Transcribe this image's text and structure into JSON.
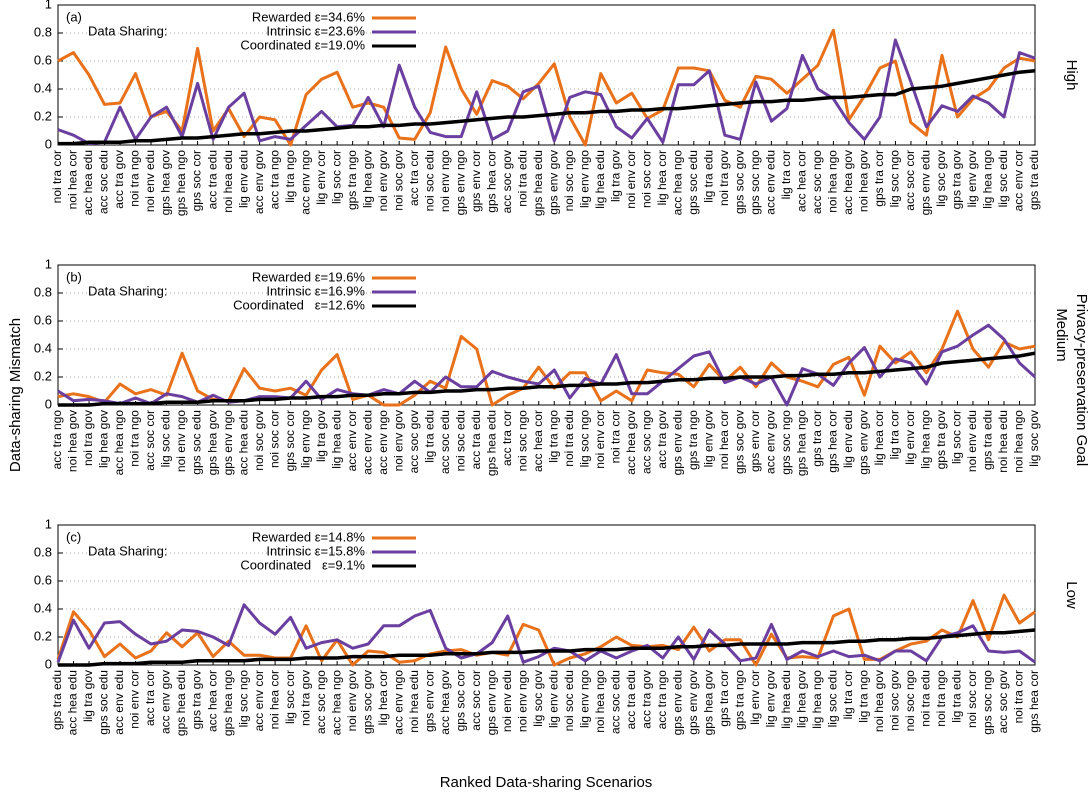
{
  "y_axis_label": "Data-sharing Mismatch",
  "x_axis_label": "Ranked Data-sharing Scenarios",
  "right_axis_label": "Privacy-preservation Goal",
  "chart_data": [
    {
      "type": "line",
      "panel_label": "(a)",
      "legend_title": "Data Sharing:",
      "side_label": "High",
      "ylim": [
        0,
        1
      ],
      "yticks": [
        0,
        0.2,
        0.4,
        0.6,
        0.8,
        1
      ],
      "grid": true,
      "categories": [
        "noi tra cor",
        "noi hea cor",
        "acc hea edu",
        "acc soc edu",
        "acc tra gov",
        "noi tra ngo",
        "noi env edu",
        "gps hea gov",
        "gps hea ngo",
        "gps soc cor",
        "acc tra edu",
        "noi hea edu",
        "lig env edu",
        "acc env gov",
        "acc tra ngo",
        "lig tra ngo",
        "acc env ngo",
        "lig env cor",
        "lig soc cor",
        "gps tra ngo",
        "lig hea gov",
        "noi env gov",
        "noi soc gov",
        "acc tra cor",
        "noi soc edu",
        "noi env ngo",
        "gps env ngo",
        "gps env cor",
        "gps hea cor",
        "acc soc gov",
        "noi tra edu",
        "gps hea edu",
        "gps env gov",
        "noi soc ngo",
        "lig env ngo",
        "lig hea edu",
        "lig tra gov",
        "noi env cor",
        "noi soc cor",
        "lig hea cor",
        "acc hea ngo",
        "gps soc edu",
        "lig tra edu",
        "noi tra gov",
        "gps soc gov",
        "gps soc ngo",
        "acc env edu",
        "lig tra cor",
        "acc hea cor",
        "acc soc ngo",
        "noi hea ngo",
        "acc hea gov",
        "noi hea gov",
        "gps tra cor",
        "lig soc ngo",
        "acc soc cor",
        "gps env edu",
        "lig soc gov",
        "gps tra gov",
        "lig env gov",
        "lig hea ngo",
        "lig soc edu",
        "acc env cor",
        "gps tra edu"
      ],
      "series": [
        {
          "name": "Rewarded ε=34.6%",
          "color": "#e8711a",
          "values": [
            0.6,
            0.66,
            0.5,
            0.29,
            0.3,
            0.51,
            0.2,
            0.24,
            0.1,
            0.69,
            0.1,
            0.26,
            0.06,
            0.2,
            0.18,
            0.0,
            0.36,
            0.47,
            0.52,
            0.27,
            0.3,
            0.27,
            0.05,
            0.04,
            0.23,
            0.7,
            0.4,
            0.22,
            0.46,
            0.42,
            0.33,
            0.44,
            0.58,
            0.2,
            0.0,
            0.51,
            0.3,
            0.37,
            0.19,
            0.25,
            0.55,
            0.55,
            0.53,
            0.32,
            0.27,
            0.49,
            0.47,
            0.37,
            0.47,
            0.57,
            0.82,
            0.18,
            0.35,
            0.55,
            0.6,
            0.16,
            0.07,
            0.64,
            0.2,
            0.33,
            0.4,
            0.55,
            0.62,
            0.6
          ]
        },
        {
          "name": "Intrinsic ε=23.6%",
          "color": "#6a3fa0",
          "values": [
            0.11,
            0.07,
            0.01,
            0.02,
            0.27,
            0.04,
            0.2,
            0.27,
            0.06,
            0.44,
            0.04,
            0.27,
            0.37,
            0.03,
            0.06,
            0.04,
            0.14,
            0.24,
            0.13,
            0.14,
            0.34,
            0.13,
            0.57,
            0.27,
            0.09,
            0.06,
            0.06,
            0.38,
            0.04,
            0.1,
            0.38,
            0.42,
            0.03,
            0.34,
            0.38,
            0.36,
            0.13,
            0.05,
            0.19,
            0.02,
            0.43,
            0.43,
            0.53,
            0.07,
            0.04,
            0.45,
            0.17,
            0.26,
            0.64,
            0.4,
            0.33,
            0.16,
            0.04,
            0.2,
            0.75,
            0.45,
            0.13,
            0.28,
            0.24,
            0.35,
            0.3,
            0.2,
            0.66,
            0.62
          ]
        },
        {
          "name": "Coordinated ε=19.0%",
          "color": "#000000",
          "values": [
            0.01,
            0.01,
            0.02,
            0.02,
            0.02,
            0.03,
            0.03,
            0.04,
            0.05,
            0.05,
            0.06,
            0.07,
            0.08,
            0.08,
            0.09,
            0.1,
            0.1,
            0.11,
            0.12,
            0.13,
            0.13,
            0.14,
            0.14,
            0.15,
            0.15,
            0.16,
            0.17,
            0.18,
            0.19,
            0.2,
            0.2,
            0.21,
            0.22,
            0.23,
            0.23,
            0.24,
            0.24,
            0.25,
            0.25,
            0.26,
            0.26,
            0.27,
            0.28,
            0.29,
            0.3,
            0.31,
            0.31,
            0.32,
            0.32,
            0.33,
            0.34,
            0.34,
            0.35,
            0.36,
            0.36,
            0.4,
            0.41,
            0.42,
            0.44,
            0.46,
            0.48,
            0.5,
            0.52,
            0.53
          ]
        }
      ]
    },
    {
      "type": "line",
      "panel_label": "(b)",
      "legend_title": "Data Sharing:",
      "side_label": "Medium",
      "ylim": [
        0,
        1
      ],
      "yticks": [
        0,
        0.2,
        0.4,
        0.6,
        0.8,
        1
      ],
      "grid": true,
      "categories": [
        "acc tra ngo",
        "noi hea gov",
        "noi tra gov",
        "lig hea gov",
        "acc hea ngo",
        "noi tra ngo",
        "acc soc cor",
        "lig soc edu",
        "noi env ngo",
        "gps soc edu",
        "gps hea gov",
        "gps env ngo",
        "acc hea edu",
        "noi soc gov",
        "noi soc cor",
        "gps soc cor",
        "lig env ngo",
        "lig tra gov",
        "lig hea edu",
        "acc env cor",
        "acc env edu",
        "acc env ngo",
        "noi env gov",
        "acc soc gov",
        "lig tra edu",
        "acc soc edu",
        "noi soc edu",
        "acc tra edu",
        "gps hea edu",
        "acc tra cor",
        "noi soc ngo",
        "acc hea cor",
        "lig tra ngo",
        "noi tra edu",
        "lig soc ngo",
        "noi env cor",
        "noi tra cor",
        "acc hea gov",
        "acc soc ngo",
        "acc tra gov",
        "gps env edu",
        "gps tra ngo",
        "lig env gov",
        "noi hea cor",
        "gps soc gov",
        "gps env cor",
        "acc env gov",
        "gps soc ngo",
        "gps hea ngo",
        "gps tra cor",
        "gps hea cor",
        "lig env edu",
        "gps env gov",
        "lig hea cor",
        "lig tra cor",
        "lig env cor",
        "lig hea ngo",
        "gps tra gov",
        "lig soc cor",
        "noi env edu",
        "gps tra edu",
        "noi hea edu",
        "noi hea ngo",
        "lig soc gov"
      ],
      "series": [
        {
          "name": "Rewarded ε=19.6%",
          "color": "#e8711a",
          "values": [
            0.06,
            0.08,
            0.06,
            0.02,
            0.15,
            0.08,
            0.11,
            0.07,
            0.37,
            0.1,
            0.04,
            0.03,
            0.26,
            0.12,
            0.1,
            0.12,
            0.07,
            0.25,
            0.36,
            0.04,
            0.07,
            0.0,
            0.0,
            0.07,
            0.17,
            0.12,
            0.49,
            0.4,
            0.0,
            0.07,
            0.12,
            0.27,
            0.12,
            0.23,
            0.23,
            0.03,
            0.1,
            0.03,
            0.25,
            0.23,
            0.22,
            0.13,
            0.29,
            0.17,
            0.27,
            0.13,
            0.3,
            0.2,
            0.17,
            0.13,
            0.29,
            0.34,
            0.07,
            0.42,
            0.3,
            0.38,
            0.23,
            0.4,
            0.67,
            0.4,
            0.27,
            0.45,
            0.4,
            0.42
          ]
        },
        {
          "name": "Intrinsic ε=16.9%",
          "color": "#6a3fa0",
          "values": [
            0.1,
            0.03,
            0.04,
            0.03,
            0.01,
            0.05,
            0.01,
            0.08,
            0.06,
            0.02,
            0.07,
            0.02,
            0.03,
            0.06,
            0.06,
            0.05,
            0.17,
            0.04,
            0.11,
            0.08,
            0.07,
            0.11,
            0.08,
            0.17,
            0.09,
            0.2,
            0.13,
            0.13,
            0.24,
            0.2,
            0.17,
            0.15,
            0.25,
            0.05,
            0.19,
            0.15,
            0.36,
            0.08,
            0.08,
            0.17,
            0.26,
            0.35,
            0.38,
            0.16,
            0.2,
            0.15,
            0.2,
            0.0,
            0.26,
            0.22,
            0.14,
            0.3,
            0.41,
            0.2,
            0.33,
            0.3,
            0.15,
            0.38,
            0.42,
            0.5,
            0.57,
            0.47,
            0.3,
            0.2
          ]
        },
        {
          "name": "Coordinated   ε=12.6%",
          "color": "#000000",
          "values": [
            0,
            0,
            0,
            0.01,
            0.01,
            0.01,
            0.01,
            0.02,
            0.02,
            0.02,
            0.03,
            0.03,
            0.03,
            0.04,
            0.04,
            0.05,
            0.05,
            0.06,
            0.06,
            0.07,
            0.07,
            0.08,
            0.08,
            0.09,
            0.09,
            0.1,
            0.1,
            0.11,
            0.11,
            0.12,
            0.12,
            0.13,
            0.13,
            0.14,
            0.14,
            0.15,
            0.15,
            0.16,
            0.16,
            0.17,
            0.18,
            0.18,
            0.19,
            0.19,
            0.2,
            0.2,
            0.2,
            0.21,
            0.21,
            0.22,
            0.22,
            0.23,
            0.23,
            0.24,
            0.25,
            0.26,
            0.27,
            0.3,
            0.31,
            0.32,
            0.33,
            0.34,
            0.35,
            0.37
          ]
        }
      ]
    },
    {
      "type": "line",
      "panel_label": "(c)",
      "legend_title": "Data Sharing:",
      "side_label": "Low",
      "ylim": [
        0,
        1
      ],
      "yticks": [
        0,
        0.2,
        0.4,
        0.6,
        0.8,
        1
      ],
      "grid": true,
      "categories": [
        "gps tra edu",
        "acc hea edu",
        "lig tra gov",
        "gps soc edu",
        "acc env edu",
        "noi env cor",
        "acc tra cor",
        "acc env gov",
        "gps hea edu",
        "gps tra gov",
        "acc hea cor",
        "gps hea ngo",
        "lig soc ngo",
        "acc env cor",
        "noi hea cor",
        "lig soc cor",
        "noi tra gov",
        "acc soc ngo",
        "acc hea ngo",
        "noi env gov",
        "gps soc gov",
        "lig hea cor",
        "acc env ngo",
        "noi hea edu",
        "gps env cor",
        "acc hea gov",
        "gps soc cor",
        "acc soc cor",
        "gps env ngo",
        "noi env edu",
        "noi env ngo",
        "lig soc gov",
        "lig env edu",
        "noi soc edu",
        "lig env ngo",
        "noi hea ngo",
        "acc soc edu",
        "acc tra edu",
        "acc tra gov",
        "acc tra ngo",
        "gps env edu",
        "gps env gov",
        "gps hea gov",
        "gps tra cor",
        "gps tra ngo",
        "lig env cor",
        "lig env gov",
        "lig hea edu",
        "lig hea gov",
        "lig hea ngo",
        "lig soc edu",
        "lig tra cor",
        "lig tra ngo",
        "noi hea gov",
        "noi soc gov",
        "noi soc ngo",
        "noi tra edu",
        "noi tra ngo",
        "lig tra edu",
        "noi soc cor",
        "gps soc ngo",
        "acc soc gov",
        "noi tra cor",
        "gps hea cor"
      ],
      "series": [
        {
          "name": "Rewarded ε=14.8%",
          "color": "#e8711a",
          "values": [
            0.04,
            0.38,
            0.25,
            0.06,
            0.15,
            0.05,
            0.1,
            0.23,
            0.13,
            0.23,
            0.06,
            0.17,
            0.07,
            0.07,
            0.05,
            0.05,
            0.28,
            0.03,
            0.18,
            0.0,
            0.1,
            0.09,
            0.02,
            0.03,
            0.08,
            0.1,
            0.11,
            0.07,
            0.09,
            0.07,
            0.29,
            0.25,
            0.0,
            0.05,
            0.08,
            0.13,
            0.2,
            0.14,
            0.13,
            0.14,
            0.11,
            0.27,
            0.1,
            0.18,
            0.18,
            0.0,
            0.22,
            0.05,
            0.06,
            0.05,
            0.35,
            0.4,
            0.04,
            0.04,
            0.1,
            0.15,
            0.17,
            0.25,
            0.2,
            0.46,
            0.18,
            0.5,
            0.3,
            0.38
          ]
        },
        {
          "name": "Intrinsic ε=15.8%",
          "color": "#6a3fa0",
          "values": [
            0.02,
            0.32,
            0.12,
            0.3,
            0.31,
            0.22,
            0.15,
            0.17,
            0.25,
            0.24,
            0.2,
            0.14,
            0.43,
            0.3,
            0.22,
            0.34,
            0.12,
            0.16,
            0.18,
            0.12,
            0.15,
            0.28,
            0.28,
            0.35,
            0.39,
            0.12,
            0.05,
            0.08,
            0.16,
            0.35,
            0.02,
            0.06,
            0.12,
            0.1,
            0.03,
            0.1,
            0.05,
            0.1,
            0.14,
            0.05,
            0.2,
            0.04,
            0.25,
            0.15,
            0.03,
            0.05,
            0.29,
            0.04,
            0.1,
            0.06,
            0.1,
            0.06,
            0.07,
            0.03,
            0.1,
            0.1,
            0.03,
            0.2,
            0.23,
            0.28,
            0.1,
            0.09,
            0.1,
            0.02
          ]
        },
        {
          "name": "Coordinated   ε=9.1%",
          "color": "#000000",
          "values": [
            0,
            0,
            0,
            0.01,
            0.01,
            0.01,
            0.02,
            0.02,
            0.02,
            0.03,
            0.03,
            0.03,
            0.03,
            0.04,
            0.04,
            0.04,
            0.05,
            0.05,
            0.05,
            0.06,
            0.06,
            0.06,
            0.07,
            0.07,
            0.07,
            0.08,
            0.08,
            0.08,
            0.09,
            0.09,
            0.09,
            0.1,
            0.1,
            0.1,
            0.11,
            0.11,
            0.11,
            0.12,
            0.12,
            0.12,
            0.13,
            0.13,
            0.14,
            0.14,
            0.15,
            0.15,
            0.15,
            0.15,
            0.16,
            0.16,
            0.16,
            0.17,
            0.17,
            0.18,
            0.18,
            0.19,
            0.19,
            0.2,
            0.21,
            0.22,
            0.23,
            0.23,
            0.24,
            0.25
          ]
        }
      ]
    }
  ]
}
